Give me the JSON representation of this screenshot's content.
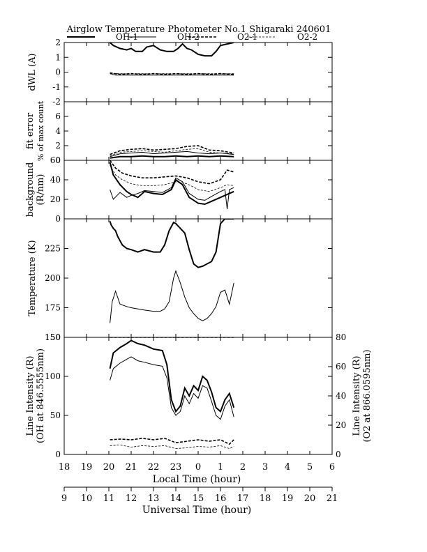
{
  "title": "Airglow Temperature Photometer No.1  Shigaraki  240601",
  "legend": [
    {
      "name": "OH-1",
      "dash": "",
      "width": 2
    },
    {
      "name": "OH-2",
      "dash": "",
      "width": 1
    },
    {
      "name": "O2-1",
      "dash": "4,2",
      "width": 1.6
    },
    {
      "name": "O2-2",
      "dash": "3,2",
      "width": 0.8
    }
  ],
  "local_axis": {
    "label": "Local Time (hour)",
    "ticks": [
      "18",
      "19",
      "20",
      "21",
      "22",
      "23",
      "0",
      "1",
      "2",
      "3",
      "4",
      "5",
      "6"
    ]
  },
  "ut_axis": {
    "label": "Universal Time (hour)",
    "ticks": [
      "9",
      "10",
      "11",
      "12",
      "13",
      "14",
      "15",
      "16",
      "17",
      "18",
      "19",
      "20",
      "21"
    ]
  },
  "chart_data": [
    {
      "type": "line",
      "ylabel": "dWL (A)",
      "ylim": [
        -2,
        2
      ],
      "yticks": [
        "2",
        "1",
        "0",
        "-1",
        "-2"
      ],
      "x_units": "hours after 18 LT",
      "series": [
        {
          "name": "OH-1",
          "x": [
            2.05,
            2.2,
            2.5,
            2.8,
            3.0,
            3.2,
            3.5,
            3.7,
            4.0,
            4.3,
            4.6,
            4.9,
            5.1,
            5.3,
            5.5,
            5.7,
            6.0,
            6.3,
            6.6,
            6.8,
            7.0,
            7.3,
            7.6
          ],
          "y": [
            2.0,
            1.8,
            1.6,
            1.5,
            1.6,
            1.4,
            1.4,
            1.7,
            1.8,
            1.5,
            1.4,
            1.4,
            1.6,
            1.9,
            1.6,
            1.5,
            1.2,
            1.1,
            1.1,
            1.4,
            1.8,
            1.9,
            2.0
          ]
        },
        {
          "name": "OH-2",
          "x": [
            2.05,
            2.3,
            2.8,
            3.3,
            3.8,
            4.3,
            4.8,
            5.3,
            5.8,
            6.3,
            6.8,
            7.3,
            7.6
          ],
          "y": [
            -0.1,
            -0.2,
            -0.2,
            -0.2,
            -0.2,
            -0.2,
            -0.2,
            -0.2,
            -0.2,
            -0.2,
            -0.2,
            -0.2,
            -0.2
          ]
        },
        {
          "name": "O2-1",
          "x": [
            2.05,
            2.5,
            3.0,
            3.5,
            4.0,
            4.5,
            5.0,
            5.5,
            6.0,
            6.5,
            7.0,
            7.6
          ],
          "y": [
            -0.05,
            -0.15,
            -0.1,
            -0.15,
            -0.1,
            -0.15,
            -0.1,
            -0.15,
            -0.1,
            -0.15,
            -0.1,
            -0.15
          ]
        },
        {
          "name": "O2-2",
          "x": [
            2.05,
            2.5,
            3.0,
            3.5,
            4.0,
            4.5,
            5.0,
            5.5,
            6.0,
            6.5,
            7.0,
            7.6
          ],
          "y": [
            -0.1,
            -0.1,
            -0.12,
            -0.1,
            -0.12,
            -0.1,
            -0.12,
            -0.1,
            -0.12,
            -0.1,
            -0.12,
            -0.1
          ]
        }
      ]
    },
    {
      "type": "line",
      "ylabel": "fit error",
      "ylabel2": "% of max count",
      "ylim": [
        0,
        8
      ],
      "yticks": [
        "6",
        "4",
        "2",
        "0"
      ],
      "series": [
        {
          "name": "OH-1",
          "x": [
            2.05,
            2.5,
            3.0,
            3.5,
            4.0,
            4.5,
            5.0,
            5.5,
            6.0,
            6.5,
            7.0,
            7.6
          ],
          "y": [
            0.3,
            0.5,
            0.5,
            0.6,
            0.5,
            0.5,
            0.6,
            0.5,
            0.6,
            0.5,
            0.6,
            0.5
          ]
        },
        {
          "name": "OH-2",
          "x": [
            2.05,
            2.5,
            3.0,
            3.5,
            4.0,
            4.5,
            5.0,
            5.5,
            6.0,
            6.5,
            7.0,
            7.6
          ],
          "y": [
            0.5,
            0.9,
            1.0,
            1.1,
            0.9,
            1.0,
            1.1,
            1.2,
            1.0,
            0.9,
            1.0,
            0.8
          ]
        },
        {
          "name": "O2-1",
          "x": [
            2.05,
            2.5,
            3.0,
            3.5,
            4.0,
            4.5,
            5.0,
            5.5,
            6.0,
            6.5,
            7.0,
            7.6
          ],
          "y": [
            0.8,
            1.3,
            1.5,
            1.6,
            1.4,
            1.5,
            1.6,
            1.9,
            2.0,
            1.4,
            1.3,
            1.0
          ]
        },
        {
          "name": "O2-2",
          "x": [
            2.05,
            2.5,
            3.0,
            3.5,
            4.0,
            4.5,
            5.0,
            5.5,
            6.0,
            6.5,
            7.0,
            7.6
          ],
          "y": [
            0.6,
            1.1,
            1.2,
            1.3,
            1.2,
            1.1,
            1.3,
            1.5,
            1.6,
            1.1,
            1.0,
            0.9
          ]
        }
      ]
    },
    {
      "type": "line",
      "ylabel": "background",
      "ylabel2": "(R/nm)",
      "ylim": [
        0,
        60
      ],
      "yticks": [
        "60",
        "40",
        "20",
        "0"
      ],
      "series": [
        {
          "name": "OH-1",
          "x": [
            2.05,
            2.2,
            2.5,
            2.8,
            3.0,
            3.3,
            3.6,
            4.0,
            4.4,
            4.8,
            5.0,
            5.3,
            5.6,
            6.0,
            6.3,
            6.6,
            7.0,
            7.4,
            7.6
          ],
          "y": [
            58,
            45,
            35,
            28,
            25,
            22,
            28,
            26,
            25,
            30,
            40,
            35,
            22,
            16,
            15,
            18,
            22,
            26,
            28
          ]
        },
        {
          "name": "OH-2",
          "x": [
            2.05,
            2.2,
            2.5,
            2.8,
            3.0,
            3.3,
            3.6,
            4.0,
            4.4,
            4.8,
            5.0,
            5.3,
            5.6,
            6.0,
            6.3,
            6.6,
            7.0,
            7.2,
            7.3,
            7.4,
            7.6
          ],
          "y": [
            30,
            20,
            27,
            22,
            24,
            26,
            29,
            28,
            27,
            32,
            42,
            38,
            26,
            20,
            19,
            23,
            28,
            30,
            10,
            30,
            32
          ]
        },
        {
          "name": "O2-1",
          "x": [
            2.05,
            2.3,
            2.6,
            3.0,
            3.5,
            4.0,
            4.5,
            5.0,
            5.5,
            6.0,
            6.5,
            7.0,
            7.3,
            7.6
          ],
          "y": [
            60,
            52,
            47,
            44,
            42,
            42,
            43,
            44,
            42,
            38,
            36,
            40,
            50,
            48
          ]
        },
        {
          "name": "O2-2",
          "x": [
            2.05,
            2.3,
            2.6,
            3.0,
            3.5,
            4.0,
            4.5,
            5.0,
            5.5,
            6.0,
            6.5,
            7.0,
            7.3,
            7.6
          ],
          "y": [
            55,
            45,
            40,
            36,
            34,
            34,
            35,
            38,
            36,
            30,
            28,
            32,
            35,
            34
          ]
        }
      ]
    },
    {
      "type": "line",
      "ylabel": "Temperature (K)",
      "ylim": [
        150,
        250
      ],
      "yticks": [
        "225",
        "200",
        "175",
        "150"
      ],
      "series": [
        {
          "name": "OH-1",
          "x": [
            2.05,
            2.1,
            2.2,
            2.3,
            2.4,
            2.6,
            2.8,
            3.0,
            3.3,
            3.6,
            4.0,
            4.3,
            4.5,
            4.7,
            4.9,
            5.0,
            5.2,
            5.4,
            5.6,
            5.8,
            6.0,
            6.2,
            6.4,
            6.6,
            6.8,
            7.0,
            7.2,
            7.4,
            7.6
          ],
          "y": [
            248,
            245,
            242,
            240,
            235,
            228,
            225,
            224,
            222,
            224,
            222,
            222,
            228,
            240,
            247,
            246,
            242,
            238,
            224,
            212,
            209,
            210,
            212,
            214,
            222,
            246,
            250,
            250,
            250
          ]
        },
        {
          "name": "OH-2",
          "x": [
            2.05,
            2.15,
            2.3,
            2.5,
            2.8,
            3.0,
            3.3,
            3.6,
            4.0,
            4.3,
            4.5,
            4.7,
            4.9,
            5.0,
            5.2,
            5.4,
            5.6,
            5.8,
            6.0,
            6.2,
            6.4,
            6.6,
            6.8,
            7.0,
            7.2,
            7.4,
            7.6
          ],
          "y": [
            162,
            180,
            189,
            178,
            176,
            175,
            174,
            173,
            172,
            172,
            174,
            180,
            200,
            206,
            196,
            184,
            175,
            170,
            166,
            164,
            166,
            170,
            176,
            188,
            190,
            178,
            196
          ]
        }
      ]
    },
    {
      "type": "line",
      "ylabel": "Line Intensity (R)",
      "ylabel2": "(OH at 846.5555nm)",
      "y2label": "Line Intensity (R)",
      "y2label2": "(O2 at 866.0595nm)",
      "ylim": [
        0,
        150
      ],
      "y2lim": [
        0,
        80
      ],
      "yticks": [
        "150",
        "100",
        "50",
        "0"
      ],
      "y2ticks": [
        "80",
        "60",
        "40",
        "20",
        "0"
      ],
      "series": [
        {
          "name": "OH-1",
          "axis": "left",
          "x": [
            2.05,
            2.2,
            2.5,
            2.8,
            3.0,
            3.3,
            3.6,
            4.0,
            4.4,
            4.6,
            4.8,
            5.0,
            5.2,
            5.4,
            5.6,
            5.8,
            6.0,
            6.2,
            6.4,
            6.6,
            6.8,
            7.0,
            7.2,
            7.4,
            7.6
          ],
          "y": [
            110,
            130,
            137,
            142,
            146,
            142,
            140,
            135,
            133,
            115,
            70,
            55,
            62,
            85,
            75,
            88,
            82,
            100,
            95,
            80,
            60,
            55,
            70,
            78,
            60
          ]
        },
        {
          "name": "OH-2",
          "axis": "left",
          "x": [
            2.05,
            2.2,
            2.5,
            2.8,
            3.0,
            3.3,
            3.6,
            4.0,
            4.4,
            4.6,
            4.8,
            5.0,
            5.2,
            5.4,
            5.6,
            5.8,
            6.0,
            6.2,
            6.4,
            6.6,
            6.8,
            7.0,
            7.2,
            7.4,
            7.6
          ],
          "y": [
            95,
            110,
            117,
            122,
            125,
            120,
            118,
            115,
            113,
            98,
            60,
            50,
            55,
            75,
            65,
            78,
            72,
            88,
            85,
            68,
            50,
            45,
            62,
            70,
            48
          ]
        },
        {
          "name": "O2-1",
          "axis": "right",
          "x": [
            2.05,
            2.5,
            3.0,
            3.5,
            4.0,
            4.5,
            5.0,
            5.5,
            6.0,
            6.5,
            7.0,
            7.4,
            7.6
          ],
          "y": [
            10,
            10.5,
            10,
            11,
            10,
            11,
            8,
            9,
            10,
            9,
            10,
            7,
            10
          ]
        },
        {
          "name": "O2-2",
          "axis": "right",
          "x": [
            2.05,
            2.5,
            3.0,
            3.5,
            4.0,
            4.5,
            5.0,
            5.5,
            6.0,
            6.5,
            7.0,
            7.4,
            7.6
          ],
          "y": [
            6,
            6.5,
            5,
            6,
            5.5,
            6,
            4,
            4.5,
            5.5,
            5,
            6,
            4,
            5.5
          ]
        },
        {
          "name": "flat",
          "axis": "left",
          "x": [
            2.05,
            7.6
          ],
          "y": [
            150,
            150
          ]
        }
      ]
    }
  ]
}
